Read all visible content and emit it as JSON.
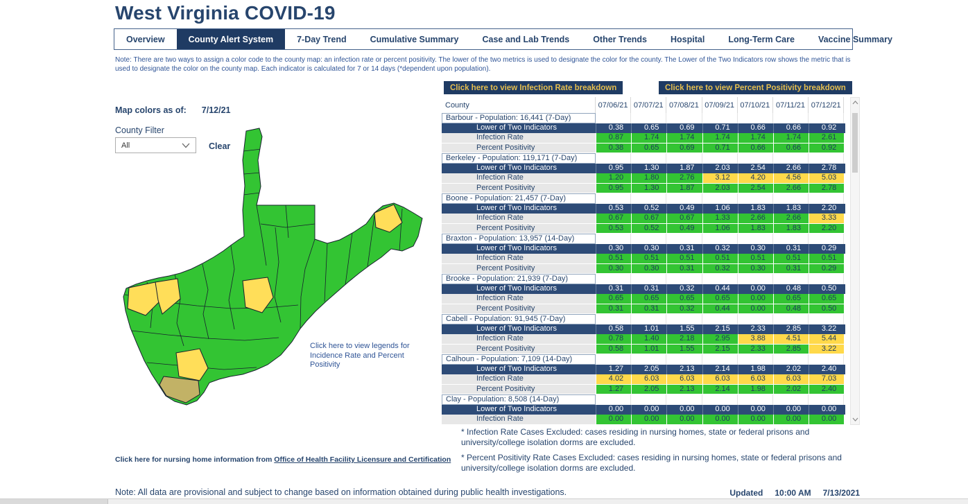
{
  "colors": {
    "navy": "#1F3B63",
    "row_navy": "#2D4B77",
    "green": "#33C433",
    "yellow": "#FFD94A",
    "map_yellow": "#FFDE59",
    "tan": "#C2B266",
    "gold": "#E5BE4F",
    "text_navy": "#27456D",
    "note_blue": "#2F5496"
  },
  "header": {
    "title": "West Virginia COVID-19"
  },
  "tabs": [
    {
      "label": "Overview",
      "active": false
    },
    {
      "label": "County Alert System",
      "active": true
    },
    {
      "label": "7-Day Trend",
      "active": false
    },
    {
      "label": "Cumulative Summary",
      "active": false
    },
    {
      "label": "Case and Lab Trends",
      "active": false
    },
    {
      "label": "Other Trends",
      "active": false
    },
    {
      "label": "Hospital",
      "active": false
    },
    {
      "label": "Long-Term Care",
      "active": false
    },
    {
      "label": "Vaccine Summary",
      "active": false
    }
  ],
  "note": "Note: There are two ways to assign a color code to the county map: an infection rate or percent positivity. The lower of the two metrics is used to designate the color for the county. The Lower of the Two Indicators row shows the metric that is used to designate the color on the county map. Each indicator is calculated for 7 or 14 days (*dependent upon population).",
  "left_panel": {
    "map_colors_label": "Map colors as of:",
    "map_colors_date": "7/12/21",
    "county_filter_label": "County Filter",
    "filter_value": "All",
    "clear_label": "Clear",
    "legend_link": "Click here to view legends for Incidence Rate and Percent Positivity"
  },
  "breakdown_buttons": {
    "infection_rate": "Click here to view Infection Rate breakdown",
    "percent_positivity": "Click here to view Percent Positivity breakdown"
  },
  "table": {
    "county_header": "County",
    "dates": [
      "07/06/21",
      "07/07/21",
      "07/08/21",
      "07/09/21",
      "07/10/21",
      "07/11/21",
      "07/12/21"
    ],
    "row_labels": {
      "lower": "Lower of Two Indicators",
      "infection": "Infection Rate",
      "positivity": "Percent Positivity"
    },
    "counties": [
      {
        "name": "Barbour - Population: 16,441 (7-Day)",
        "lower": [
          "0.38",
          "0.65",
          "0.69",
          "0.71",
          "0.66",
          "0.66",
          "0.92"
        ],
        "infection": [
          "0.87",
          "1.74",
          "1.74",
          "1.74",
          "1.74",
          "1.74",
          "2.61"
        ],
        "ir_colors": [
          "g",
          "g",
          "g",
          "g",
          "g",
          "g",
          "g"
        ],
        "positivity": [
          "0.38",
          "0.65",
          "0.69",
          "0.71",
          "0.66",
          "0.66",
          "0.92"
        ],
        "pp_colors": [
          "g",
          "g",
          "g",
          "g",
          "g",
          "g",
          "g"
        ]
      },
      {
        "name": "Berkeley - Population: 119,171 (7-Day)",
        "lower": [
          "0.95",
          "1.30",
          "1.87",
          "2.03",
          "2.54",
          "2.66",
          "2.78"
        ],
        "infection": [
          "1.20",
          "1.80",
          "2.76",
          "3.12",
          "4.20",
          "4.56",
          "5.03"
        ],
        "ir_colors": [
          "g",
          "g",
          "g",
          "y",
          "y",
          "y",
          "y"
        ],
        "positivity": [
          "0.95",
          "1.30",
          "1.87",
          "2.03",
          "2.54",
          "2.66",
          "2.78"
        ],
        "pp_colors": [
          "g",
          "g",
          "g",
          "g",
          "g",
          "g",
          "g"
        ]
      },
      {
        "name": "Boone - Population: 21,457 (7-Day)",
        "lower": [
          "0.53",
          "0.52",
          "0.49",
          "1.06",
          "1.83",
          "1.83",
          "2.20"
        ],
        "infection": [
          "0.67",
          "0.67",
          "0.67",
          "1.33",
          "2.66",
          "2.66",
          "3.33"
        ],
        "ir_colors": [
          "g",
          "g",
          "g",
          "g",
          "g",
          "g",
          "y"
        ],
        "positivity": [
          "0.53",
          "0.52",
          "0.49",
          "1.06",
          "1.83",
          "1.83",
          "2.20"
        ],
        "pp_colors": [
          "g",
          "g",
          "g",
          "g",
          "g",
          "g",
          "g"
        ]
      },
      {
        "name": "Braxton - Population: 13,957 (14-Day)",
        "lower": [
          "0.30",
          "0.30",
          "0.31",
          "0.32",
          "0.30",
          "0.31",
          "0.29"
        ],
        "infection": [
          "0.51",
          "0.51",
          "0.51",
          "0.51",
          "0.51",
          "0.51",
          "0.51"
        ],
        "ir_colors": [
          "g",
          "g",
          "g",
          "g",
          "g",
          "g",
          "g"
        ],
        "positivity": [
          "0.30",
          "0.30",
          "0.31",
          "0.32",
          "0.30",
          "0.31",
          "0.29"
        ],
        "pp_colors": [
          "g",
          "g",
          "g",
          "g",
          "g",
          "g",
          "g"
        ]
      },
      {
        "name": "Brooke - Population: 21,939 (7-Day)",
        "lower": [
          "0.31",
          "0.31",
          "0.32",
          "0.44",
          "0.00",
          "0.48",
          "0.50"
        ],
        "infection": [
          "0.65",
          "0.65",
          "0.65",
          "0.65",
          "0.00",
          "0.65",
          "0.65"
        ],
        "ir_colors": [
          "g",
          "g",
          "g",
          "g",
          "g",
          "g",
          "g"
        ],
        "positivity": [
          "0.31",
          "0.31",
          "0.32",
          "0.44",
          "0.00",
          "0.48",
          "0.50"
        ],
        "pp_colors": [
          "g",
          "g",
          "g",
          "g",
          "g",
          "g",
          "g"
        ]
      },
      {
        "name": "Cabell - Population: 91,945 (7-Day)",
        "lower": [
          "0.58",
          "1.01",
          "1.55",
          "2.15",
          "2.33",
          "2.85",
          "3.22"
        ],
        "infection": [
          "0.78",
          "1.40",
          "2.18",
          "2.95",
          "3.88",
          "4.51",
          "5.44"
        ],
        "ir_colors": [
          "g",
          "g",
          "g",
          "g",
          "y",
          "y",
          "y"
        ],
        "positivity": [
          "0.58",
          "1.01",
          "1.55",
          "2.15",
          "2.33",
          "2.85",
          "3.22"
        ],
        "pp_colors": [
          "g",
          "g",
          "g",
          "g",
          "g",
          "g",
          "y"
        ]
      },
      {
        "name": "Calhoun - Population: 7,109 (14-Day)",
        "lower": [
          "1.27",
          "2.05",
          "2.13",
          "2.14",
          "1.98",
          "2.02",
          "2.40"
        ],
        "infection": [
          "4.02",
          "6.03",
          "6.03",
          "6.03",
          "6.03",
          "6.03",
          "7.03"
        ],
        "ir_colors": [
          "y",
          "y",
          "y",
          "y",
          "y",
          "y",
          "y"
        ],
        "positivity": [
          "1.27",
          "2.05",
          "2.13",
          "2.14",
          "1.98",
          "2.02",
          "2.40"
        ],
        "pp_colors": [
          "g",
          "g",
          "g",
          "g",
          "g",
          "g",
          "g"
        ]
      },
      {
        "name": "Clay - Population: 8,508 (14-Day)",
        "lower": [
          "0.00",
          "0.00",
          "0.00",
          "0.00",
          "0.00",
          "0.00",
          "0.00"
        ],
        "infection": [
          "0.00",
          "0.00",
          "0.00",
          "0.00",
          "0.00",
          "0.00",
          "0.00"
        ],
        "ir_colors": [
          "g",
          "g",
          "g",
          "g",
          "g",
          "g",
          "g"
        ]
      }
    ]
  },
  "footnotes": {
    "infection_rate_excluded": "* Infection Rate Cases Excluded: cases residing in nursing homes, state or federal prisons and university/college isolation dorms are excluded.",
    "percent_positivity_excluded": "* Percent Positivity Rate Cases Excluded: cases residing in nursing homes, state or federal prisons and university/college isolation dorms are excluded."
  },
  "nursing_home": {
    "prefix": "Click here for nursing home information from",
    "link": "Office of Health Facility Licensure and Certification"
  },
  "bottom": {
    "note": "Note: All data are provisional and subject to change based on information obtained during public health investigations.",
    "updated_label": "Updated",
    "updated_time": "10:00 AM",
    "updated_date": "7/13/2021"
  }
}
